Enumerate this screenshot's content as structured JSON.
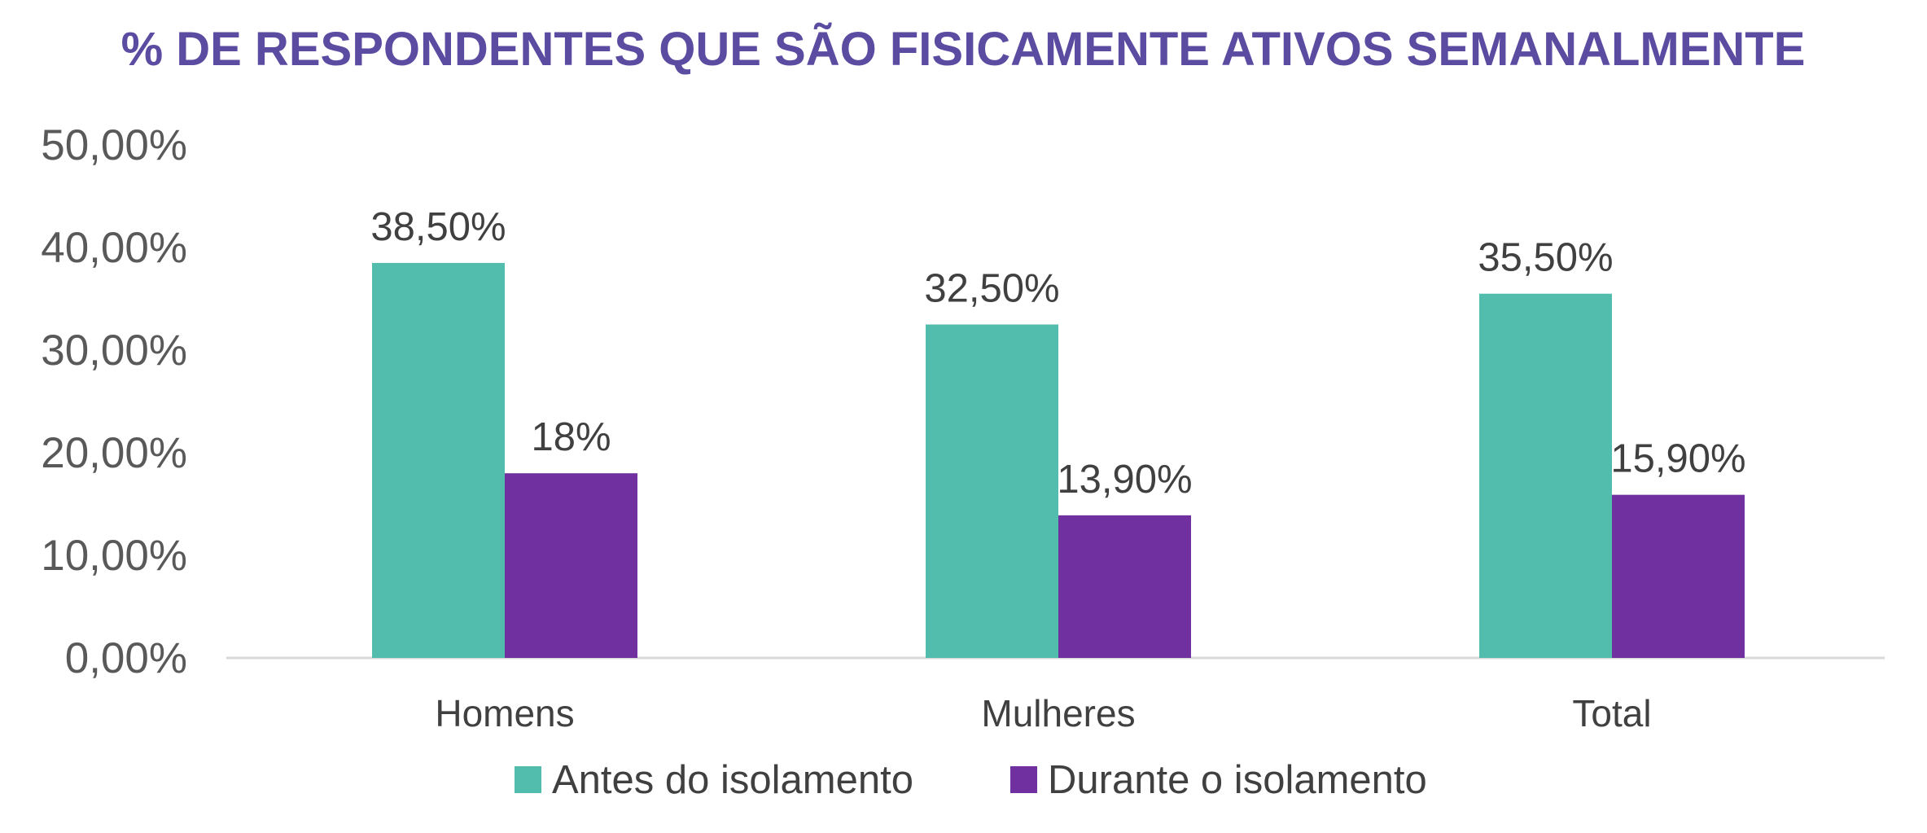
{
  "chart_data": {
    "type": "bar",
    "title": "% DE RESPONDENTES QUE SÃO FISICAMENTE ATIVOS SEMANALMENTE",
    "categories": [
      "Homens",
      "Mulheres",
      "Total"
    ],
    "series": [
      {
        "name": "Antes do isolamento",
        "color": "#52bcad",
        "values": [
          38.5,
          32.5,
          35.5
        ],
        "labels": [
          "38,50%",
          "32,50%",
          "35,50%"
        ]
      },
      {
        "name": "Durante o isolamento",
        "color": "#7030a0",
        "values": [
          18,
          13.9,
          15.9
        ],
        "labels": [
          "18%",
          "13,90%",
          "15,90%"
        ]
      }
    ],
    "ylim": [
      0,
      50
    ],
    "yticks": [
      0,
      10,
      20,
      30,
      40,
      50
    ],
    "ytick_labels": [
      "0,00%",
      "10,00%",
      "20,00%",
      "30,00%",
      "40,00%",
      "50,00%"
    ],
    "xlabel": "",
    "ylabel": "",
    "grid": false,
    "legend_position": "bottom"
  }
}
